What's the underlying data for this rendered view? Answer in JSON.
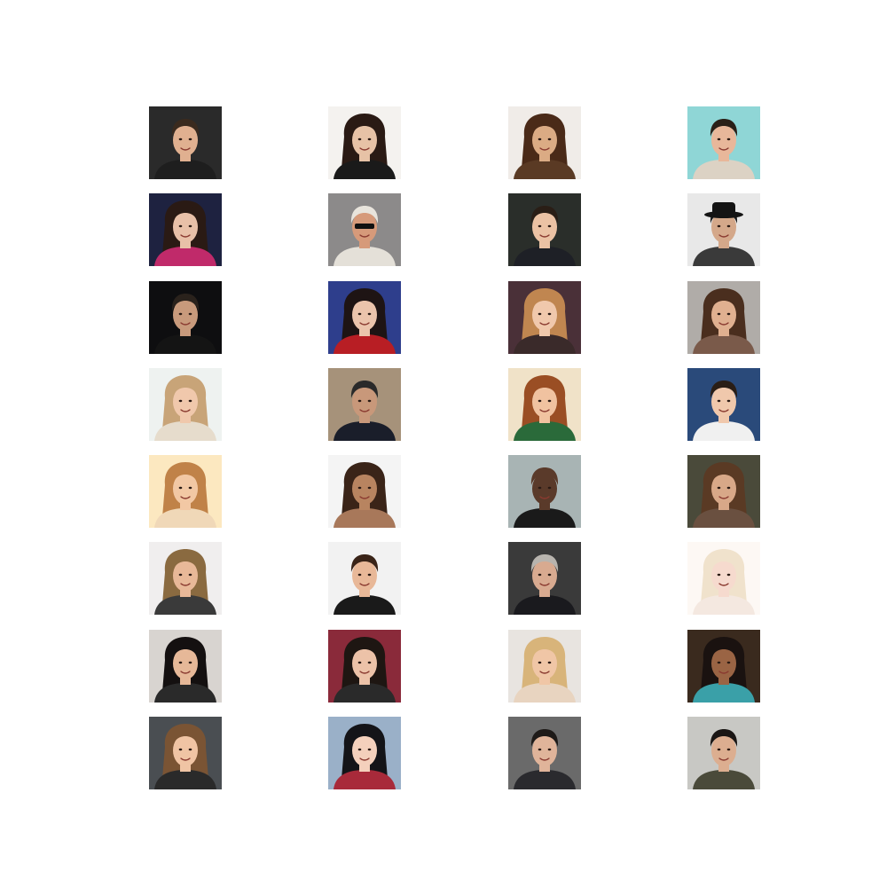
{
  "grid": {
    "rows": 8,
    "cols": 4,
    "background": "#ffffff"
  },
  "tiles": [
    {
      "bg": "#2a2a2a",
      "skin": "#e0b090",
      "hair": "#3a2a1e",
      "shirt": "#1e1e1e",
      "long": false,
      "accessory": "none"
    },
    {
      "bg": "#f4f2ef",
      "skin": "#e7c2a6",
      "hair": "#2a1a14",
      "shirt": "#1a1a1a",
      "long": true,
      "accessory": "none"
    },
    {
      "bg": "#f0ece8",
      "skin": "#dbab84",
      "hair": "#4a2a18",
      "shirt": "#5a3a24",
      "long": true,
      "accessory": "none"
    },
    {
      "bg": "#8fd6d6",
      "skin": "#e8b79a",
      "hair": "#2a2018",
      "shirt": "#dcd2c4",
      "long": false,
      "accessory": "none"
    },
    {
      "bg": "#1e2240",
      "skin": "#e8c0a8",
      "hair": "#2a1a14",
      "shirt": "#c02a6a",
      "long": true,
      "accessory": "none"
    },
    {
      "bg": "#8c8a8a",
      "skin": "#d69a7a",
      "hair": "#e8e4dc",
      "shirt": "#e4e0d8",
      "long": false,
      "accessory": "sunglasses"
    },
    {
      "bg": "#2a2e2a",
      "skin": "#ebc2a4",
      "hair": "#2a1e16",
      "shirt": "#1e2026",
      "long": false,
      "accessory": "none"
    },
    {
      "bg": "#e8e8e8",
      "skin": "#d4a88a",
      "hair": "#1a1a1a",
      "shirt": "#3a3a3a",
      "long": false,
      "accessory": "hat"
    },
    {
      "bg": "#0e0e10",
      "skin": "#c89a7c",
      "hair": "#2a221c",
      "shirt": "#141414",
      "long": false,
      "accessory": "none"
    },
    {
      "bg": "#2e3e8c",
      "skin": "#ebc4ac",
      "hair": "#1e1414",
      "shirt": "#b81e24",
      "long": true,
      "accessory": "none"
    },
    {
      "bg": "#4a3038",
      "skin": "#f0c8ac",
      "hair": "#c08650",
      "shirt": "#3a2a2a",
      "long": true,
      "accessory": "none"
    },
    {
      "bg": "#b0aca8",
      "skin": "#e0b090",
      "hair": "#4a2e1e",
      "shirt": "#7a5a4a",
      "long": true,
      "accessory": "none"
    },
    {
      "bg": "#eef2f0",
      "skin": "#f0c8ac",
      "hair": "#c8a478",
      "shirt": "#e6dccc",
      "long": true,
      "accessory": "none"
    },
    {
      "bg": "#a6927a",
      "skin": "#c8987a",
      "hair": "#2a2a2a",
      "shirt": "#1a1e2a",
      "long": false,
      "accessory": "none"
    },
    {
      "bg": "#f0e2c8",
      "skin": "#f0c2a0",
      "hair": "#9a4e24",
      "shirt": "#2a6a3a",
      "long": true,
      "accessory": "none"
    },
    {
      "bg": "#2a4a7a",
      "skin": "#f0c8ac",
      "hair": "#2a1e16",
      "shirt": "#f0f0f0",
      "long": false,
      "accessory": "none"
    },
    {
      "bg": "#fce8c0",
      "skin": "#f2c8a4",
      "hair": "#c08248",
      "shirt": "#f0d8b8",
      "long": true,
      "accessory": "none"
    },
    {
      "bg": "#f4f4f4",
      "skin": "#b88460",
      "hair": "#3a2418",
      "shirt": "#a8785a",
      "long": true,
      "accessory": "none"
    },
    {
      "bg": "#a8b4b4",
      "skin": "#5a3a2a",
      "hair": "#5a3a2a",
      "shirt": "#1a1a1a",
      "long": false,
      "accessory": "none"
    },
    {
      "bg": "#4a4a3a",
      "skin": "#d8a888",
      "hair": "#5a3a24",
      "shirt": "#6a5040",
      "long": true,
      "accessory": "none"
    },
    {
      "bg": "#f0eeee",
      "skin": "#e8b898",
      "hair": "#8a6a40",
      "shirt": "#3a3a3a",
      "long": true,
      "accessory": "none"
    },
    {
      "bg": "#f2f2f2",
      "skin": "#e8b898",
      "hair": "#3a2418",
      "shirt": "#1a1a1a",
      "long": false,
      "accessory": "none"
    },
    {
      "bg": "#3a3a3a",
      "skin": "#d8aa90",
      "hair": "#b8b4ae",
      "shirt": "#1a1a1e",
      "long": false,
      "accessory": "none"
    },
    {
      "bg": "#fdf8f4",
      "skin": "#f6dace",
      "hair": "#f0e2cc",
      "shirt": "#f4e8e0",
      "long": true,
      "accessory": "none"
    },
    {
      "bg": "#d8d4d0",
      "skin": "#e6b898",
      "hair": "#141010",
      "shirt": "#2a2a2a",
      "long": true,
      "accessory": "none"
    },
    {
      "bg": "#8a2a3a",
      "skin": "#ecc2a8",
      "hair": "#1e1612",
      "shirt": "#2a2a2a",
      "long": true,
      "accessory": "none"
    },
    {
      "bg": "#e8e4e0",
      "skin": "#f0c6a6",
      "hair": "#d8b47a",
      "shirt": "#e8d4c0",
      "long": true,
      "accessory": "none"
    },
    {
      "bg": "#3a2a1e",
      "skin": "#9a6444",
      "hair": "#1a1210",
      "shirt": "#3aa0a8",
      "long": true,
      "accessory": "none"
    },
    {
      "bg": "#4a4e52",
      "skin": "#f0c4a4",
      "hair": "#7a5434",
      "shirt": "#2a2a2a",
      "long": true,
      "accessory": "none"
    },
    {
      "bg": "#9ab0c8",
      "skin": "#f4d0bc",
      "hair": "#141418",
      "shirt": "#a82a3a",
      "long": true,
      "accessory": "none"
    },
    {
      "bg": "#6a6a6a",
      "skin": "#e0b49a",
      "hair": "#1e1a18",
      "shirt": "#2a2a2e",
      "long": false,
      "accessory": "none"
    },
    {
      "bg": "#c8c8c4",
      "skin": "#dcae90",
      "hair": "#1a1614",
      "shirt": "#4a4a3a",
      "long": false,
      "accessory": "none"
    }
  ]
}
